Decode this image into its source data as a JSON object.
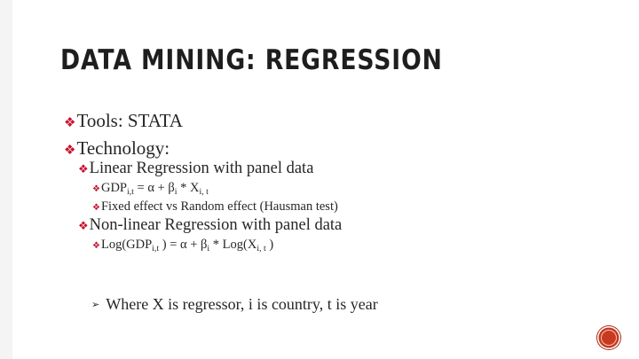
{
  "title": "Data Mining: Regression",
  "bullet_glyph": "❖",
  "items": {
    "tools": "Tools: STATA",
    "technology": "Technology:",
    "linear": {
      "label": "Linear Regression with panel data",
      "eq1": {
        "a": "GDP",
        "a_sub": "i,t",
        "b": " = α + β",
        "b_sub": "i",
        "c": " * X",
        "c_sub": "i, t"
      },
      "fixed": "Fixed effect  vs Random effect (Hausman test)"
    },
    "nonlinear": {
      "label": "Non-linear Regression with panel data",
      "eq2": {
        "a": "Log(GDP",
        "a_sub": "i,t",
        "b": " )  = α + β",
        "b_sub": "i",
        "c": " * Log(X",
        "c_sub": "i, t",
        "d": " )"
      }
    }
  },
  "note": {
    "arrow": "➢",
    "text": "Where X is regressor, i is country, t is year"
  },
  "colors": {
    "bullet": "#c8102e",
    "nav_button": "#c8391f"
  },
  "icons": {
    "bullet": "diamond-bullet-icon",
    "note": "arrow-bullet-icon",
    "nav": "circle-nav-icon"
  }
}
